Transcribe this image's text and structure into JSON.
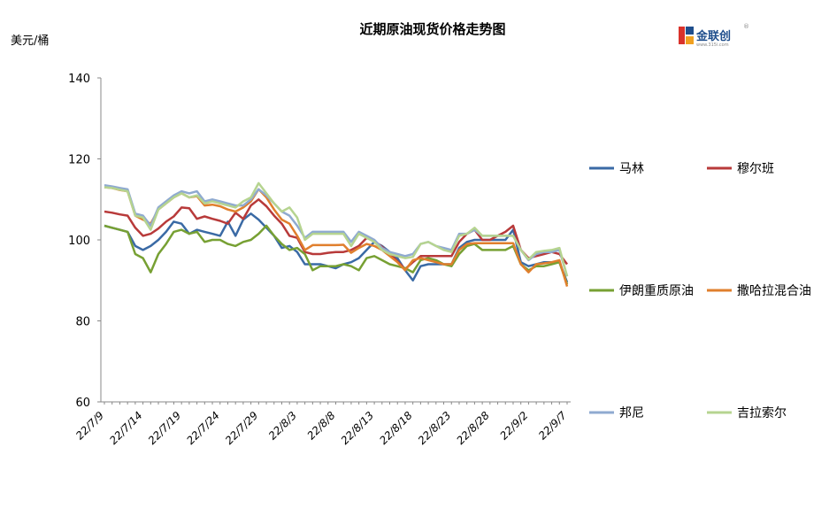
{
  "logo": {
    "text": "金联创",
    "sub": "www.315i.com",
    "reg": "®"
  },
  "chart_data": {
    "type": "line",
    "title": "近期原油现货价格走势图",
    "ylabel": "美元/桶",
    "xlabel": "",
    "ylim": [
      60,
      140
    ],
    "yticks": [
      "60",
      "80",
      "100",
      "120",
      "140"
    ],
    "grid": false,
    "legend_position": "right",
    "x_tick_labels": [
      "22/7/9",
      "22/7/14",
      "22/7/19",
      "22/7/24",
      "22/7/29",
      "22/8/3",
      "22/8/8",
      "22/8/13",
      "22/8/18",
      "22/8/23",
      "22/8/28",
      "22/9/2",
      "22/9/7"
    ],
    "x": [
      "7/9",
      "7/10",
      "7/11",
      "7/12",
      "7/13",
      "7/14",
      "7/15",
      "7/16",
      "7/17",
      "7/18",
      "7/19",
      "7/20",
      "7/21",
      "7/22",
      "7/23",
      "7/24",
      "7/25",
      "7/26",
      "7/27",
      "7/28",
      "7/29",
      "7/30",
      "7/31",
      "8/1",
      "8/2",
      "8/3",
      "8/4",
      "8/5",
      "8/6",
      "8/7",
      "8/8",
      "8/9",
      "8/10",
      "8/11",
      "8/12",
      "8/13",
      "8/14",
      "8/15",
      "8/16",
      "8/17",
      "8/18",
      "8/19",
      "8/20",
      "8/21",
      "8/22",
      "8/23",
      "8/24",
      "8/25",
      "8/26",
      "8/27",
      "8/28",
      "8/29",
      "8/30",
      "8/31",
      "9/1",
      "9/2",
      "9/3",
      "9/4",
      "9/5",
      "9/6",
      "9/7"
    ],
    "series": [
      {
        "name": "马林",
        "color": "#3a6aa5",
        "values": [
          103.5,
          103,
          102.5,
          102,
          98.5,
          97.5,
          98.5,
          100,
          102,
          104.5,
          104,
          101.5,
          102.5,
          102,
          101.5,
          101,
          104.5,
          101,
          105,
          106.5,
          105,
          103,
          101,
          98,
          98.5,
          97,
          94,
          94,
          94,
          93.5,
          93,
          94,
          94.5,
          95.5,
          97.5,
          99.5,
          98.5,
          97,
          95.5,
          92.5,
          90,
          93.5,
          94,
          94,
          94,
          94,
          98,
          99.5,
          100,
          100,
          100,
          100,
          100,
          102.5,
          94.5,
          93.5,
          94,
          94.5,
          94.5,
          94.5,
          89.5
        ]
      },
      {
        "name": "穆尔班",
        "color": "#b83a3a",
        "values": [
          107,
          106.7,
          106.3,
          106,
          103,
          101,
          101.5,
          102.8,
          104.5,
          105.8,
          108,
          107.8,
          105.2,
          105.8,
          105.2,
          104.7,
          104,
          106.7,
          105.2,
          108.5,
          110,
          108.3,
          106,
          104,
          101,
          100.5,
          97,
          96.5,
          96.5,
          96.8,
          97,
          97,
          97.5,
          98.5,
          100.5,
          99.7,
          98.3,
          96.7,
          94.7,
          92.8,
          94.5,
          96,
          96,
          96,
          96,
          96,
          99.5,
          101.5,
          102.5,
          100,
          100,
          101,
          102,
          103.5,
          97.5,
          95.5,
          96,
          96.5,
          97,
          96.5,
          94
        ]
      },
      {
        "name": "伊朗重质原油",
        "color": "#77a033",
        "values": [
          103.5,
          103,
          102.5,
          102,
          96.5,
          95.5,
          92,
          96.5,
          99,
          102,
          102.5,
          101.5,
          102,
          99.5,
          100,
          100,
          99,
          98.5,
          99.5,
          100,
          101.5,
          103.5,
          101,
          99,
          97.5,
          98,
          96.5,
          92.5,
          93.5,
          93.5,
          93.5,
          94,
          93.5,
          92.5,
          95.5,
          96,
          95,
          94,
          93.5,
          93,
          92,
          95,
          95.5,
          95,
          94,
          93.5,
          96.5,
          98.5,
          99,
          97.5,
          97.5,
          97.5,
          97.5,
          98.5,
          94,
          92.5,
          93.5,
          93.5,
          94,
          94.5,
          89
        ]
      },
      {
        "name": "撒哈拉混合油",
        "color": "#e07f2d",
        "values": [
          113,
          112.8,
          112.3,
          112,
          106,
          105,
          104,
          107.5,
          109,
          110.5,
          111.5,
          110.5,
          110.8,
          108.5,
          108.7,
          108.3,
          107.5,
          107,
          108,
          109.5,
          112.5,
          110.5,
          107.5,
          105,
          104,
          101,
          97.5,
          98.7,
          98.7,
          98.7,
          98.7,
          98.8,
          96.8,
          98,
          99,
          98.5,
          97.5,
          96,
          94.5,
          92.5,
          95,
          95.5,
          95,
          94.5,
          94,
          94,
          97.5,
          99,
          99.2,
          99.2,
          99.2,
          99.2,
          99.2,
          99.2,
          94,
          92,
          94,
          94.2,
          94.5,
          95,
          88.5
        ]
      },
      {
        "name": "邦尼",
        "color": "#8faad0",
        "values": [
          113.5,
          113.2,
          112.8,
          112.5,
          106.5,
          106,
          103.5,
          108,
          109.5,
          111,
          112,
          111.5,
          112,
          109.5,
          110,
          109.5,
          109,
          108.5,
          108.5,
          110,
          112.5,
          111,
          109,
          107,
          106,
          103.5,
          100.5,
          102,
          102,
          102,
          102,
          102,
          99.5,
          102,
          101,
          100,
          98,
          97,
          96.5,
          96,
          96.5,
          99,
          99.5,
          98.5,
          98,
          97.5,
          101.5,
          101.5,
          102.5,
          101,
          101,
          101,
          101,
          101,
          97.5,
          95,
          96.5,
          97,
          97,
          97.5,
          91
        ]
      },
      {
        "name": "吉拉索尔",
        "color": "#b6d490",
        "values": [
          113,
          112.8,
          112.4,
          112,
          106,
          105.5,
          102.5,
          107.5,
          109,
          110.5,
          111.5,
          110.5,
          111,
          109,
          109.5,
          109,
          108.5,
          108,
          109.5,
          110.5,
          114,
          111.5,
          109,
          107,
          108,
          105.5,
          100,
          101.5,
          101.5,
          101.5,
          101.5,
          101.5,
          98.5,
          101.5,
          100.5,
          99.5,
          97.5,
          96.5,
          96,
          95.5,
          95.8,
          99,
          99.5,
          98.5,
          97.5,
          97,
          101,
          101.5,
          103,
          101,
          101,
          101,
          101,
          101,
          97.5,
          95.2,
          97,
          97.3,
          97.5,
          98,
          91
        ]
      }
    ]
  }
}
